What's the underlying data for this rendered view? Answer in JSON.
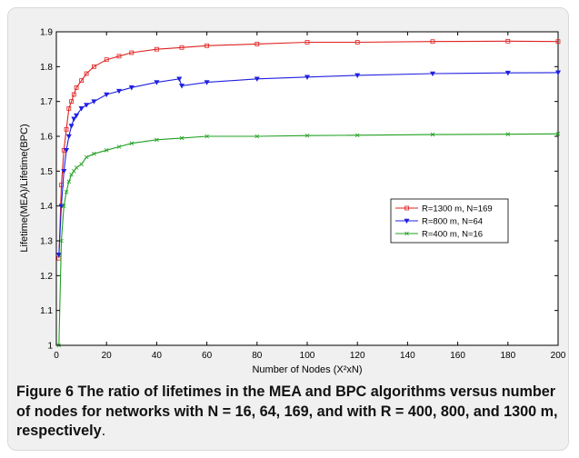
{
  "figure": {
    "label": "Figure 6",
    "caption_bold": "The ratio of lifetimes in the MEA and BPC algorithms versus number of nodes for networks with N = 16, 64, 169, and with R = 400, 800, and 1300 m, respectively",
    "caption_end": "."
  },
  "chart_data": {
    "type": "line",
    "xlabel": "Number of Nodes (X²xN)",
    "ylabel": "Lifetime(MEA)/Lifetime(BPC)",
    "xlim": [
      0,
      200
    ],
    "ylim": [
      1.0,
      1.9
    ],
    "xticks": [
      0,
      20,
      40,
      60,
      80,
      100,
      120,
      140,
      160,
      180,
      200
    ],
    "yticks": [
      1.0,
      1.1,
      1.2,
      1.3,
      1.4,
      1.5,
      1.6,
      1.7,
      1.8,
      1.9
    ],
    "xtick_labels": [
      "0",
      "20",
      "40",
      "60",
      "80",
      "100",
      "120",
      "140",
      "160",
      "180",
      "200"
    ],
    "ytick_labels": [
      "1",
      "1.1",
      "1.2",
      "1.3",
      "1.4",
      "1.5",
      "1.6",
      "1.7",
      "1.8",
      "1.9"
    ],
    "legend_position": "right-center",
    "grid": false,
    "series": [
      {
        "name": "R=1300 m, N=169",
        "color": "#e02020",
        "marker": "square",
        "x": [
          1,
          2,
          3,
          4,
          5,
          6,
          7,
          8,
          10,
          12,
          15,
          20,
          25,
          30,
          40,
          50,
          60,
          80,
          100,
          120,
          150,
          180,
          200
        ],
        "y": [
          1.25,
          1.46,
          1.56,
          1.62,
          1.68,
          1.7,
          1.72,
          1.74,
          1.76,
          1.78,
          1.8,
          1.82,
          1.83,
          1.84,
          1.85,
          1.855,
          1.86,
          1.865,
          1.87,
          1.87,
          1.872,
          1.873,
          1.872
        ]
      },
      {
        "name": "R=800 m, N=64",
        "color": "#2020e0",
        "marker": "triangle-down",
        "x": [
          1,
          2,
          3,
          4,
          5,
          6,
          7,
          8,
          10,
          12,
          15,
          20,
          25,
          30,
          40,
          49,
          50,
          60,
          80,
          100,
          120,
          150,
          180,
          200
        ],
        "y": [
          1.26,
          1.4,
          1.5,
          1.56,
          1.6,
          1.63,
          1.65,
          1.66,
          1.68,
          1.69,
          1.7,
          1.72,
          1.73,
          1.74,
          1.755,
          1.765,
          1.745,
          1.755,
          1.765,
          1.77,
          1.775,
          1.78,
          1.782,
          1.783
        ]
      },
      {
        "name": "R=400 m, N=16",
        "color": "#20a020",
        "marker": "x",
        "x": [
          1,
          2,
          3,
          4,
          5,
          6,
          7,
          8,
          10,
          12,
          15,
          20,
          25,
          30,
          40,
          50,
          60,
          80,
          100,
          120,
          150,
          180,
          200
        ],
        "y": [
          1.0,
          1.3,
          1.4,
          1.44,
          1.47,
          1.49,
          1.5,
          1.51,
          1.52,
          1.54,
          1.55,
          1.56,
          1.57,
          1.58,
          1.59,
          1.595,
          1.6,
          1.6,
          1.602,
          1.603,
          1.605,
          1.606,
          1.607
        ]
      }
    ]
  }
}
